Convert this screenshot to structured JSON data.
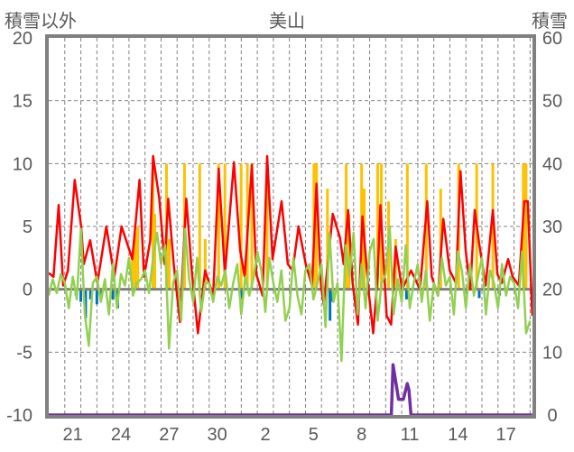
{
  "chart_data": {
    "type": "line",
    "title": "美山",
    "ylabel_left": "積雪以外",
    "ylabel_right": "積雪",
    "ylim_left": [
      -10,
      20
    ],
    "ylim_right": [
      0,
      60
    ],
    "yticks_left": [
      "20",
      "15",
      "10",
      "5",
      "0",
      "-5",
      "-10"
    ],
    "yticks_left_values": [
      20,
      15,
      10,
      5,
      0,
      -5,
      -10
    ],
    "yticks_right": [
      "60",
      "50",
      "40",
      "30",
      "20",
      "10",
      "0"
    ],
    "yticks_right_values": [
      60,
      50,
      40,
      30,
      20,
      10,
      0
    ],
    "xlim_days": [
      0,
      30.15
    ],
    "xticks": [
      "21",
      "24",
      "27",
      "30",
      "2",
      "5",
      "8",
      "11",
      "14",
      "17"
    ],
    "xticks_day_offsets": [
      1.5,
      4.5,
      7.5,
      10.5,
      13.5,
      16.5,
      19.5,
      22.5,
      25.5,
      28.5
    ],
    "grid": true,
    "colors": {
      "red": "#ff0000",
      "green": "#92d050",
      "yellow": "#ffc000",
      "blue": "#0070c0",
      "purple": "#7030a0",
      "axis": "#808080"
    },
    "series": [
      {
        "name": "red",
        "axis": "left",
        "kind": "line",
        "points": [
          [
            0,
            1.3
          ],
          [
            0.3,
            1.0
          ],
          [
            0.62,
            6.7
          ],
          [
            0.9,
            0.3
          ],
          [
            1.2,
            1.5
          ],
          [
            1.62,
            8.7
          ],
          [
            2.02,
            5.0
          ],
          [
            2.18,
            2.0
          ],
          [
            2.58,
            3.9
          ],
          [
            3.03,
            0.5
          ],
          [
            3.59,
            5.0
          ],
          [
            4.09,
            1.0
          ],
          [
            4.54,
            5.0
          ],
          [
            5.21,
            2.4
          ],
          [
            5.66,
            8.7
          ],
          [
            5.94,
            1.0
          ],
          [
            6.33,
            3.9
          ],
          [
            6.5,
            10.6
          ],
          [
            6.89,
            7.2
          ],
          [
            7.23,
            2.0
          ],
          [
            7.45,
            7.2
          ],
          [
            7.79,
            2.0
          ],
          [
            8.18,
            -2.6
          ],
          [
            8.57,
            7.2
          ],
          [
            8.91,
            1.5
          ],
          [
            9.3,
            -3.5
          ],
          [
            9.75,
            1.5
          ],
          [
            10.25,
            -0.5
          ],
          [
            10.59,
            9.6
          ],
          [
            10.98,
            1.2
          ],
          [
            11.54,
            10.1
          ],
          [
            11.93,
            3.1
          ],
          [
            12.21,
            1.0
          ],
          [
            12.66,
            9.9
          ],
          [
            12.94,
            1.2
          ],
          [
            13.33,
            -0.5
          ],
          [
            13.61,
            10.6
          ],
          [
            13.95,
            2.4
          ],
          [
            14.51,
            7.0
          ],
          [
            14.9,
            2.0
          ],
          [
            15.2,
            1.5
          ],
          [
            15.57,
            5.0
          ],
          [
            16.02,
            2.0
          ],
          [
            16.41,
            0.3
          ],
          [
            16.69,
            8.4
          ],
          [
            16.97,
            0.3
          ],
          [
            17.14,
            -1.2
          ],
          [
            17.7,
            6.0
          ],
          [
            18.15,
            4.1
          ],
          [
            18.38,
            2.0
          ],
          [
            18.66,
            6.3
          ],
          [
            18.94,
            0.5
          ],
          [
            19.27,
            -2.8
          ],
          [
            19.55,
            5.8
          ],
          [
            19.94,
            -0.2
          ],
          [
            20.22,
            -3.5
          ],
          [
            20.5,
            1.0
          ],
          [
            20.67,
            6.7
          ],
          [
            21.06,
            -2.1
          ],
          [
            21.34,
            -2.8
          ],
          [
            21.62,
            3.4
          ],
          [
            22.02,
            0.0
          ],
          [
            22.58,
            1.5
          ],
          [
            23.14,
            0.0
          ],
          [
            23.59,
            7.0
          ],
          [
            23.87,
            1.0
          ],
          [
            24.26,
            -0.5
          ],
          [
            24.59,
            5.6
          ],
          [
            24.99,
            1.5
          ],
          [
            25.38,
            0.5
          ],
          [
            25.66,
            9.4
          ],
          [
            25.99,
            3.1
          ],
          [
            26.27,
            0.0
          ],
          [
            26.55,
            6.3
          ],
          [
            26.83,
            3.6
          ],
          [
            27.23,
            0.3
          ],
          [
            27.68,
            6.3
          ],
          [
            27.96,
            1.2
          ],
          [
            28.24,
            0.5
          ],
          [
            28.63,
            2.4
          ],
          [
            28.91,
            1.0
          ],
          [
            29.3,
            0.3
          ],
          [
            29.64,
            7.0
          ],
          [
            29.86,
            7.0
          ],
          [
            30.14,
            -2.1
          ]
        ]
      },
      {
        "name": "green",
        "axis": "left",
        "kind": "line",
        "step_days": 0.25,
        "values": [
          -0.5,
          0.8,
          -0.3,
          1.2,
          0.5,
          -1.5,
          1.0,
          -0.8,
          4.8,
          -2.0,
          -4.5,
          0.5,
          1.0,
          -1.0,
          0.8,
          -2.0,
          2.0,
          -1.5,
          1.2,
          0.3,
          2.5,
          -0.5,
          0.5,
          0.8,
          1.5,
          -0.3,
          2.5,
          4.5,
          2.0,
          3.5,
          -4.7,
          0.5,
          1.5,
          -2.5,
          4.8,
          0.8,
          -1.0,
          2.5,
          -1.8,
          0.5,
          0.5,
          -1.0,
          1.0,
          0.3,
          1.5,
          -1.5,
          0.5,
          2.0,
          -2.0,
          1.0,
          -0.5,
          0.8,
          3.0,
          1.5,
          -1.8,
          2.5,
          0.5,
          -1.0,
          1.5,
          -2.5,
          -1.5,
          2.5,
          -0.5,
          -2.0,
          1.5,
          2.0,
          -0.8,
          0.5,
          2.0,
          -3.0,
          4.5,
          -1.0,
          0.5,
          -5.7,
          3.5,
          1.0,
          4.5,
          -2.0,
          2.0,
          -1.5,
          3.0,
          4.0,
          -2.5,
          0.5,
          1.2,
          5.0,
          -2.0,
          0.8,
          -1.0,
          3.5,
          -1.5,
          0.5,
          2.0,
          -1.0,
          1.5,
          -2.5,
          0.5,
          -0.5,
          2.5,
          0.3,
          1.0,
          -2.0,
          3.0,
          1.5,
          -1.5,
          2.0,
          -0.5,
          1.0,
          2.5,
          -2.0,
          1.5,
          0.5,
          -1.5,
          2.0,
          -0.5,
          1.0,
          0.5,
          -1.5,
          3.0,
          -3.5,
          -2.5
        ]
      },
      {
        "name": "yellow",
        "axis": "left",
        "kind": "bar",
        "points": [
          [
            5.21,
            3
          ],
          [
            5.38,
            4.5
          ],
          [
            5.55,
            5
          ],
          [
            6.5,
            10
          ],
          [
            6.61,
            6
          ],
          [
            7.34,
            10
          ],
          [
            7.51,
            4
          ],
          [
            8.46,
            10
          ],
          [
            9.41,
            10
          ],
          [
            9.75,
            4
          ],
          [
            10.59,
            10
          ],
          [
            10.98,
            10
          ],
          [
            11.99,
            10
          ],
          [
            12.38,
            10
          ],
          [
            12.66,
            10
          ],
          [
            13.61,
            10
          ],
          [
            16.527,
            10
          ],
          [
            16.69,
            10
          ],
          [
            17.37,
            8
          ],
          [
            18.54,
            10
          ],
          [
            18.71,
            6
          ],
          [
            19.5,
            10
          ],
          [
            19.66,
            8
          ],
          [
            20.5,
            10
          ],
          [
            20.73,
            10
          ],
          [
            21.18,
            7
          ],
          [
            21.62,
            4
          ],
          [
            22.35,
            10
          ],
          [
            23.53,
            10
          ],
          [
            24.43,
            8
          ],
          [
            25.55,
            10
          ],
          [
            26.67,
            10
          ],
          [
            27.68,
            10
          ],
          [
            29.58,
            10
          ],
          [
            29.75,
            10
          ]
        ]
      },
      {
        "name": "blue",
        "axis": "left",
        "kind": "bar",
        "points": [
          [
            1.7,
            -0.5
          ],
          [
            2.0,
            -1.0
          ],
          [
            2.3,
            -2.3
          ],
          [
            2.6,
            -0.8
          ],
          [
            3.0,
            -1.2
          ],
          [
            3.3,
            -0.6
          ],
          [
            4.0,
            -0.8
          ],
          [
            4.3,
            -1.5
          ],
          [
            8.1,
            -0.8
          ],
          [
            8.3,
            -0.5
          ],
          [
            11.99,
            -0.7
          ],
          [
            17.53,
            -2.5
          ],
          [
            17.7,
            -1.0
          ],
          [
            22.3,
            -0.8
          ],
          [
            26.83,
            -0.7
          ],
          [
            28.1,
            -0.5
          ]
        ]
      },
      {
        "name": "purple",
        "axis": "right",
        "kind": "line",
        "points": [
          [
            0,
            0
          ],
          [
            21.35,
            0
          ],
          [
            21.46,
            8
          ],
          [
            21.8,
            2.5
          ],
          [
            22.1,
            2.5
          ],
          [
            22.35,
            5
          ],
          [
            22.45,
            4
          ],
          [
            22.58,
            0
          ],
          [
            30.14,
            0
          ]
        ]
      }
    ]
  }
}
